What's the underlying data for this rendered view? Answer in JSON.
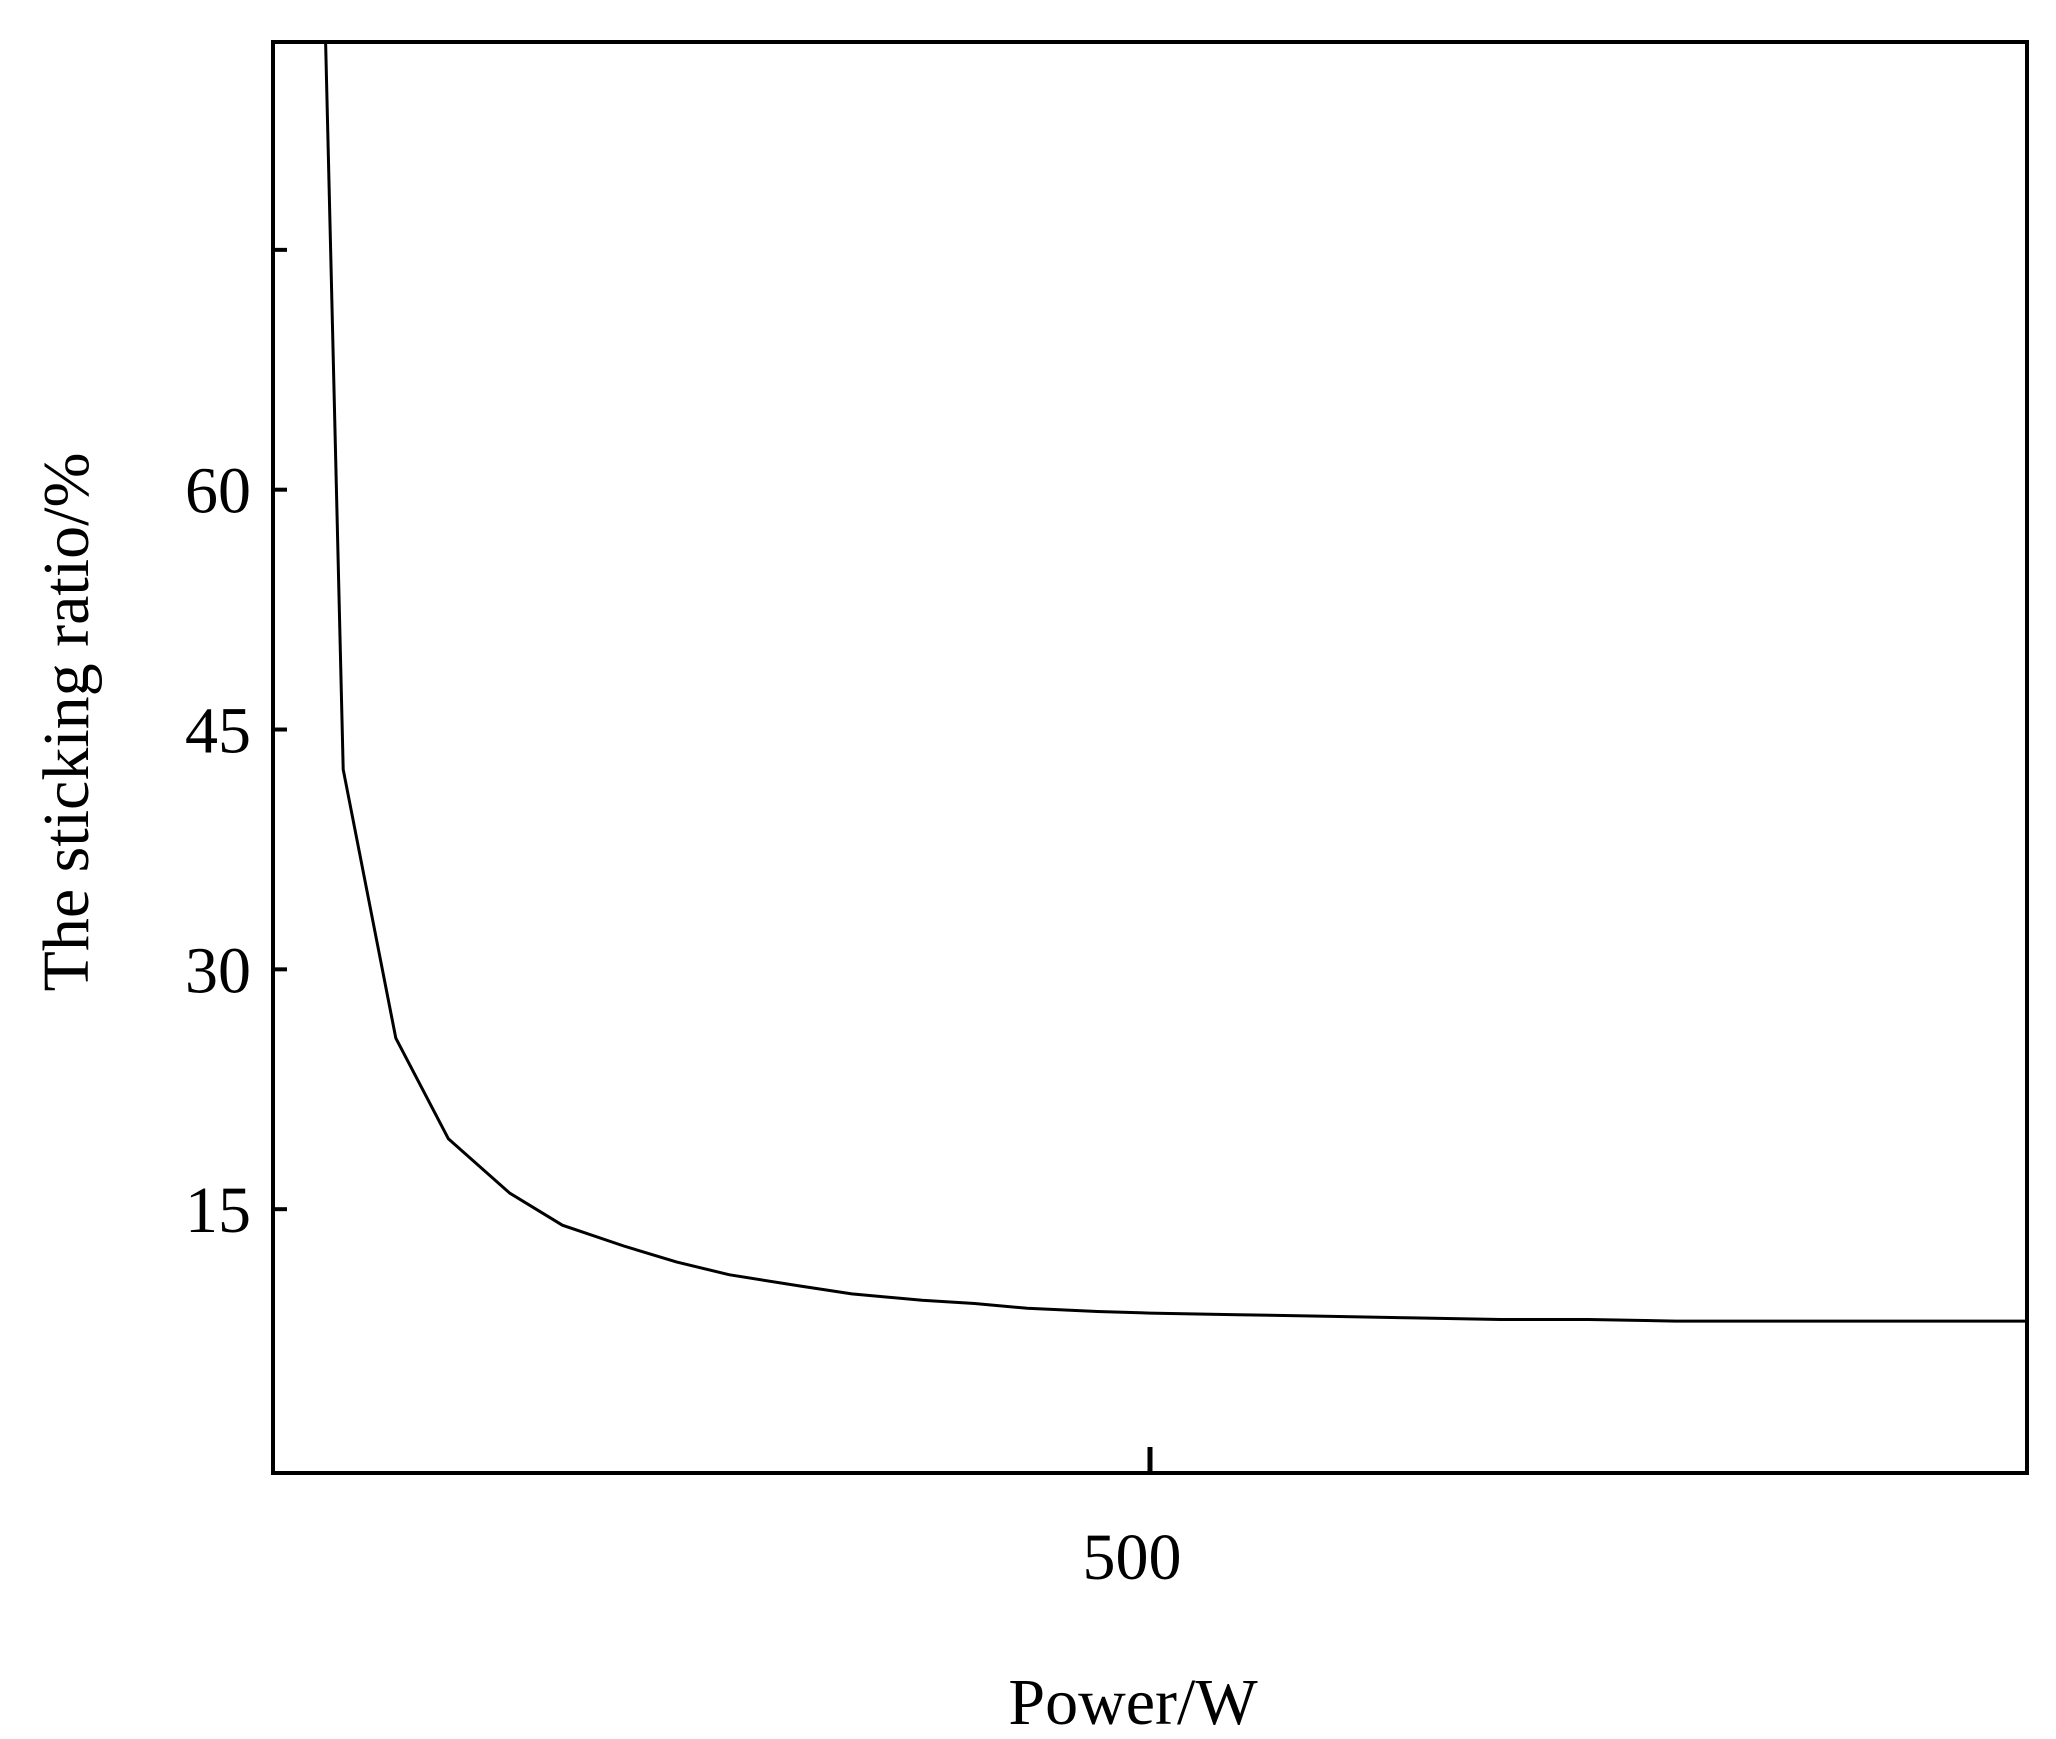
{
  "chart_data": {
    "type": "line",
    "title": "",
    "xlabel": "Power/W",
    "ylabel": "The sticking ratio/%",
    "xlim": [
      0,
      1000
    ],
    "ylim": [
      -1.5,
      88
    ],
    "x_ticks": [
      500
    ],
    "x_tick_labels": [
      "500"
    ],
    "y_ticks": [
      15,
      30,
      45,
      60,
      75
    ],
    "y_tick_labels": [
      "15",
      "30",
      "45",
      "60",
      ""
    ],
    "grid": false,
    "legend": "none",
    "series": [
      {
        "color": "#000000",
        "x": [
          30,
          40,
          70,
          100,
          135,
          165,
          200,
          230,
          260,
          300,
          330,
          370,
          400,
          430,
          470,
          500,
          550,
          600,
          650,
          700,
          750,
          800,
          850,
          900,
          950,
          1000
        ],
        "y": [
          88,
          42.5,
          25.7,
          19.4,
          16.0,
          14.0,
          12.7,
          11.7,
          10.9,
          10.2,
          9.7,
          9.3,
          9.1,
          8.8,
          8.6,
          8.5,
          8.4,
          8.3,
          8.2,
          8.1,
          8.1,
          8.0,
          8.0,
          8.0,
          8.0,
          8.0
        ]
      }
    ]
  }
}
